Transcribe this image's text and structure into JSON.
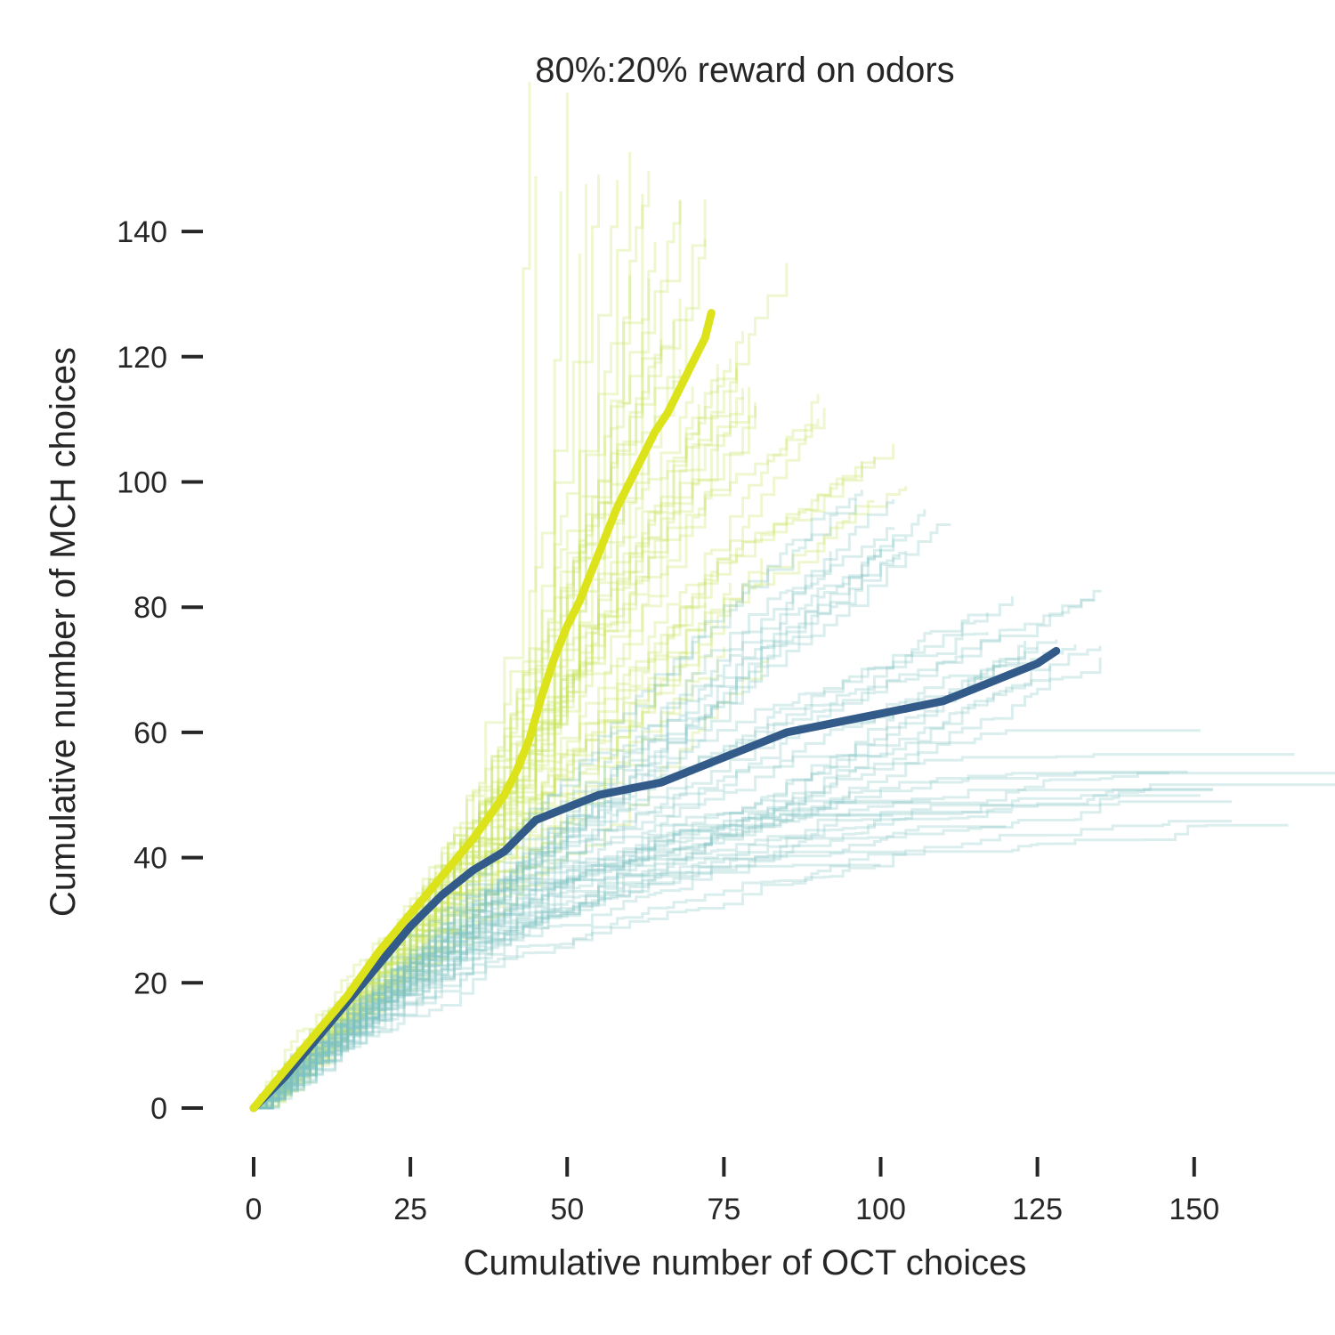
{
  "chart_data": {
    "type": "line",
    "title": "80%:20% reward on odors",
    "xlabel": "Cumulative number of OCT choices",
    "ylabel": "Cumulative number of MCH choices",
    "xlim": [
      -4,
      160
    ],
    "ylim": [
      -7,
      150
    ],
    "xticks": [
      0,
      25,
      50,
      75,
      100,
      125,
      150
    ],
    "yticks": [
      0,
      20,
      40,
      60,
      80,
      100,
      120,
      140
    ],
    "grid": false,
    "legend": "none",
    "series": [
      {
        "role": "mean",
        "color": "#dde31a",
        "x": [
          0,
          5,
          10,
          15,
          20,
          25,
          30,
          35,
          40,
          42,
          44,
          46,
          48,
          50,
          52,
          54,
          56,
          58,
          60,
          62,
          64,
          66,
          68,
          70,
          72,
          73
        ],
        "y": [
          0,
          6,
          12,
          18,
          25,
          31,
          37,
          43,
          50,
          54,
          59,
          66,
          72,
          77,
          81,
          86,
          91,
          96,
          100,
          104,
          108,
          111,
          115,
          119,
          123,
          127
        ]
      },
      {
        "role": "mean",
        "color": "#325b8a",
        "x": [
          0,
          5,
          10,
          15,
          20,
          25,
          30,
          35,
          40,
          43,
          45,
          50,
          55,
          60,
          65,
          70,
          75,
          80,
          85,
          90,
          95,
          100,
          105,
          110,
          115,
          120,
          125,
          128
        ],
        "y": [
          0,
          5,
          11,
          17,
          23,
          29,
          34,
          38,
          41,
          44,
          46,
          48,
          50,
          51,
          52,
          54,
          56,
          58,
          60,
          61,
          62,
          63,
          64,
          65,
          67,
          69,
          71,
          73
        ]
      }
    ],
    "individual_trajectories": {
      "colors": [
        "#c5e25a",
        "#7fc3c3"
      ],
      "yellow_group": [
        [
          [
            0,
            0
          ],
          [
            10,
            11
          ],
          [
            22,
            25
          ],
          [
            35,
            40
          ],
          [
            45,
            70
          ],
          [
            48,
            152
          ]
        ],
        [
          [
            0,
            0
          ],
          [
            10,
            12
          ],
          [
            25,
            30
          ],
          [
            40,
            55
          ],
          [
            52,
            100
          ],
          [
            58,
            142
          ]
        ],
        [
          [
            0,
            0
          ],
          [
            12,
            13
          ],
          [
            28,
            33
          ],
          [
            42,
            55
          ],
          [
            55,
            95
          ],
          [
            66,
            137
          ]
        ],
        [
          [
            0,
            0
          ],
          [
            10,
            10
          ],
          [
            25,
            26
          ],
          [
            40,
            44
          ],
          [
            60,
            85
          ],
          [
            80,
            124
          ]
        ],
        [
          [
            0,
            0
          ],
          [
            12,
            12
          ],
          [
            28,
            30
          ],
          [
            45,
            52
          ],
          [
            70,
            85
          ],
          [
            95,
            104
          ]
        ],
        [
          [
            0,
            0
          ],
          [
            8,
            9
          ],
          [
            20,
            22
          ],
          [
            35,
            38
          ],
          [
            55,
            65
          ],
          [
            85,
            110
          ]
        ],
        [
          [
            0,
            0
          ],
          [
            15,
            15
          ],
          [
            30,
            28
          ],
          [
            45,
            42
          ],
          [
            60,
            60
          ],
          [
            75,
            80
          ]
        ],
        [
          [
            0,
            0
          ],
          [
            10,
            11
          ],
          [
            25,
            27
          ],
          [
            38,
            45
          ],
          [
            50,
            75
          ],
          [
            70,
            118
          ]
        ]
      ],
      "teal_group": [
        [
          [
            0,
            0
          ],
          [
            15,
            12
          ],
          [
            30,
            24
          ],
          [
            45,
            34
          ],
          [
            60,
            38
          ],
          [
            80,
            45
          ],
          [
            100,
            56
          ],
          [
            127,
            71
          ]
        ],
        [
          [
            0,
            0
          ],
          [
            12,
            11
          ],
          [
            30,
            26
          ],
          [
            50,
            40
          ],
          [
            75,
            60
          ],
          [
            100,
            80
          ],
          [
            112,
            88
          ]
        ],
        [
          [
            0,
            0
          ],
          [
            10,
            10
          ],
          [
            25,
            25
          ],
          [
            40,
            40
          ],
          [
            60,
            60
          ],
          [
            80,
            80
          ],
          [
            100,
            97
          ]
        ],
        [
          [
            0,
            0
          ],
          [
            15,
            13
          ],
          [
            35,
            28
          ],
          [
            60,
            40
          ],
          [
            90,
            50
          ],
          [
            130,
            55
          ],
          [
            158,
            43
          ]
        ],
        [
          [
            0,
            0
          ],
          [
            15,
            12
          ],
          [
            35,
            25
          ],
          [
            60,
            35
          ],
          [
            100,
            45
          ],
          [
            140,
            50
          ],
          [
            153,
            47
          ]
        ],
        [
          [
            0,
            0
          ],
          [
            12,
            12
          ],
          [
            30,
            28
          ],
          [
            50,
            45
          ],
          [
            80,
            62
          ],
          [
            110,
            75
          ],
          [
            125,
            82
          ]
        ],
        [
          [
            0,
            0
          ],
          [
            10,
            9
          ],
          [
            25,
            20
          ],
          [
            45,
            33
          ],
          [
            70,
            42
          ],
          [
            90,
            44
          ],
          [
            110,
            42
          ]
        ]
      ]
    }
  }
}
